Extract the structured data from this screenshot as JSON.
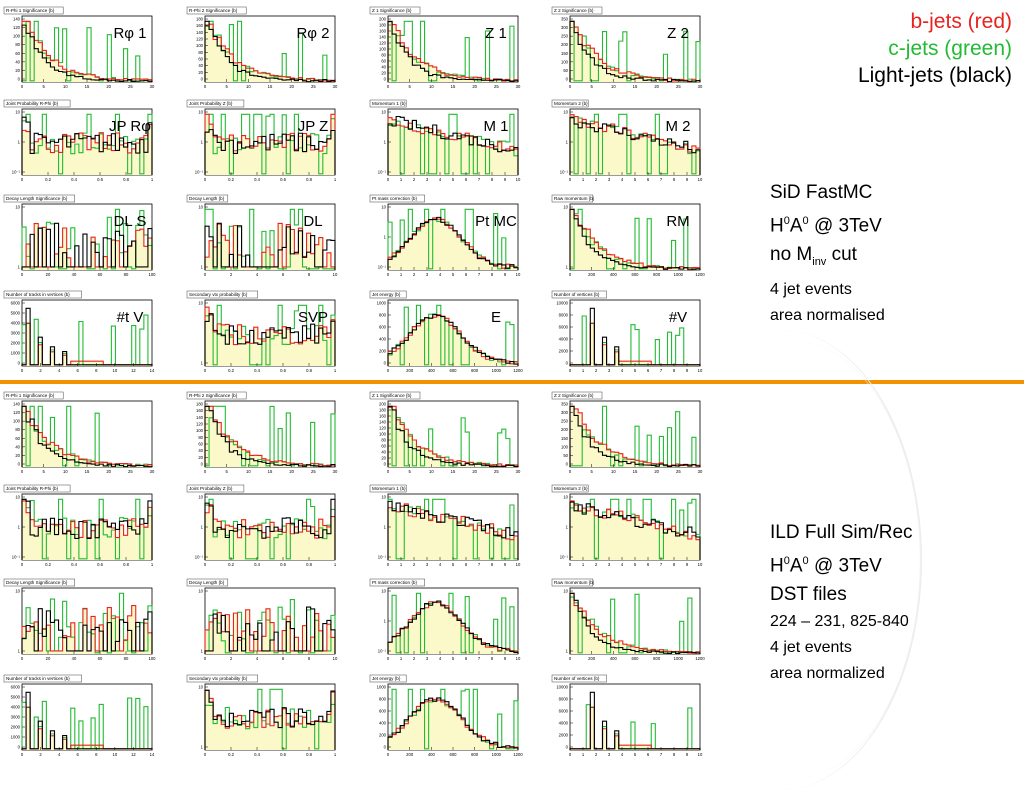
{
  "legend": {
    "b": "b-jets (red)",
    "c": "c-jets (green)",
    "l": "Light-jets (black)",
    "colors": {
      "b": "#e8231f",
      "c": "#22bb33",
      "l": "#000000",
      "fill": "#fbf9c9"
    }
  },
  "info_sid": {
    "l1": "SiD FastMC",
    "l2a": "H",
    "l2b": "0",
    "l2c": "A",
    "l2d": "0",
    "l2e": " @ 3TeV",
    "l3a": "no M",
    "l3b": "inv",
    "l3c": " cut",
    "l4": "4 jet events",
    "l5": "area normalised"
  },
  "info_ild": {
    "l1": "ILD Full Sim/Rec",
    "l2a": "H",
    "l2b": "0",
    "l2c": "A",
    "l2d": "0",
    "l2e": " @ 3TeV",
    "l3": "DST files",
    "l4": "224 – 231, 825-840",
    "l5": "4 jet events",
    "l6": "area normalized"
  },
  "chart_data": {
    "type": "histogram-grid",
    "panel_titles": [
      [
        "R-Phi 1 Significance {b}",
        "R-Phi 2 Significance {b}",
        "Z 1 Significance {b}",
        "Z 2 Significance {b}"
      ],
      [
        "Joint Probability R-Phi {b}",
        "Joint Probability Z {b}",
        "Momentum 1 {b}",
        "Momentum 2 {b}"
      ],
      [
        "Decay Length Significance {b}",
        "Decay Length {b}",
        "Pt mass correction {b}",
        "Raw momentum {b}"
      ],
      [
        "Number of tracks in vertices {b}",
        "Secondary vtx probability {b}",
        "Jet energy {b}",
        "Number of vertices {b}"
      ]
    ],
    "labels": [
      [
        "Rφ 1",
        "Rφ 2",
        "Z 1",
        "Z 2"
      ],
      [
        "JP Rφ",
        "JP Z",
        "M 1",
        "M 2"
      ],
      [
        "DL S",
        "DL",
        "Pt MC",
        "RM"
      ],
      [
        "#t V",
        "SVP",
        "E",
        "#V"
      ]
    ],
    "yticks": [
      [
        [
          "140",
          "120",
          "100",
          "80",
          "60",
          "40",
          "20",
          "0"
        ],
        [
          "180",
          "160",
          "140",
          "120",
          "100",
          "80",
          "60",
          "40",
          "20",
          "0"
        ],
        [
          "200",
          "180",
          "160",
          "140",
          "120",
          "100",
          "80",
          "60",
          "40",
          "20",
          "0"
        ],
        [
          "350",
          "300",
          "250",
          "200",
          "150",
          "100",
          "50",
          "0"
        ]
      ],
      [
        [
          "10",
          "1",
          "10⁻¹"
        ],
        [
          "10",
          "1",
          "10⁻¹"
        ],
        [
          "10",
          "1",
          "10⁻¹"
        ],
        [
          "10",
          "1",
          "10⁻¹"
        ]
      ],
      [
        [
          "10",
          "1"
        ],
        [
          "10",
          "1"
        ],
        [
          "10",
          "1",
          "10⁻¹"
        ],
        [
          "10",
          "1"
        ]
      ],
      [
        [
          "6000",
          "5000",
          "4000",
          "3000",
          "2000",
          "1000",
          "0"
        ],
        [
          "10",
          "1"
        ],
        [
          "1000",
          "800",
          "600",
          "400",
          "200",
          "0"
        ],
        [
          "10000",
          "8000",
          "6000",
          "4000",
          "2000",
          "0"
        ]
      ]
    ],
    "xticks": [
      [
        [
          "0",
          "5",
          "10",
          "15",
          "20",
          "25",
          "30"
        ],
        [
          "0",
          "5",
          "10",
          "15",
          "20",
          "25",
          "30"
        ],
        [
          "0",
          "5",
          "10",
          "15",
          "20",
          "25",
          "30"
        ],
        [
          "0",
          "5",
          "10",
          "15",
          "20",
          "25",
          "30"
        ]
      ],
      [
        [
          "0",
          "0.2",
          "0.4",
          "0.6",
          "0.8",
          "1"
        ],
        [
          "0",
          "0.2",
          "0.4",
          "0.6",
          "0.8",
          "1"
        ],
        [
          "0",
          "1",
          "2",
          "3",
          "4",
          "5",
          "6",
          "7",
          "8",
          "9",
          "10"
        ],
        [
          "0",
          "1",
          "2",
          "3",
          "4",
          "5",
          "6",
          "7",
          "8",
          "9",
          "10"
        ]
      ],
      [
        [
          "0",
          "20",
          "40",
          "60",
          "80",
          "100"
        ],
        [
          "0",
          "2",
          "4",
          "6",
          "8",
          "10"
        ],
        [
          "0",
          "1",
          "2",
          "3",
          "4",
          "5",
          "6",
          "7",
          "8",
          "9",
          "10"
        ],
        [
          "0",
          "200",
          "400",
          "600",
          "800",
          "1000",
          "1200"
        ]
      ],
      [
        [
          "0",
          "2",
          "4",
          "6",
          "8",
          "10",
          "12",
          "14"
        ],
        [
          "0",
          "0.2",
          "0.4",
          "0.6",
          "0.8",
          "1"
        ],
        [
          "0",
          "200",
          "400",
          "600",
          "800",
          "1000",
          "1200"
        ],
        [
          "0",
          "1",
          "2",
          "3",
          "4",
          "5",
          "6",
          "7",
          "8",
          "9",
          "10"
        ]
      ]
    ],
    "series_colors": {
      "b": "#e8231f",
      "c": "#22bb33",
      "l": "#000000"
    },
    "note": "Two blocks of 4x4 histogram panels (top: SiD FastMC, bottom: ILD Full Sim/Rec); b, c and light-jet distributions overlaid, area normalised. Bin contents are approximate shapes."
  }
}
